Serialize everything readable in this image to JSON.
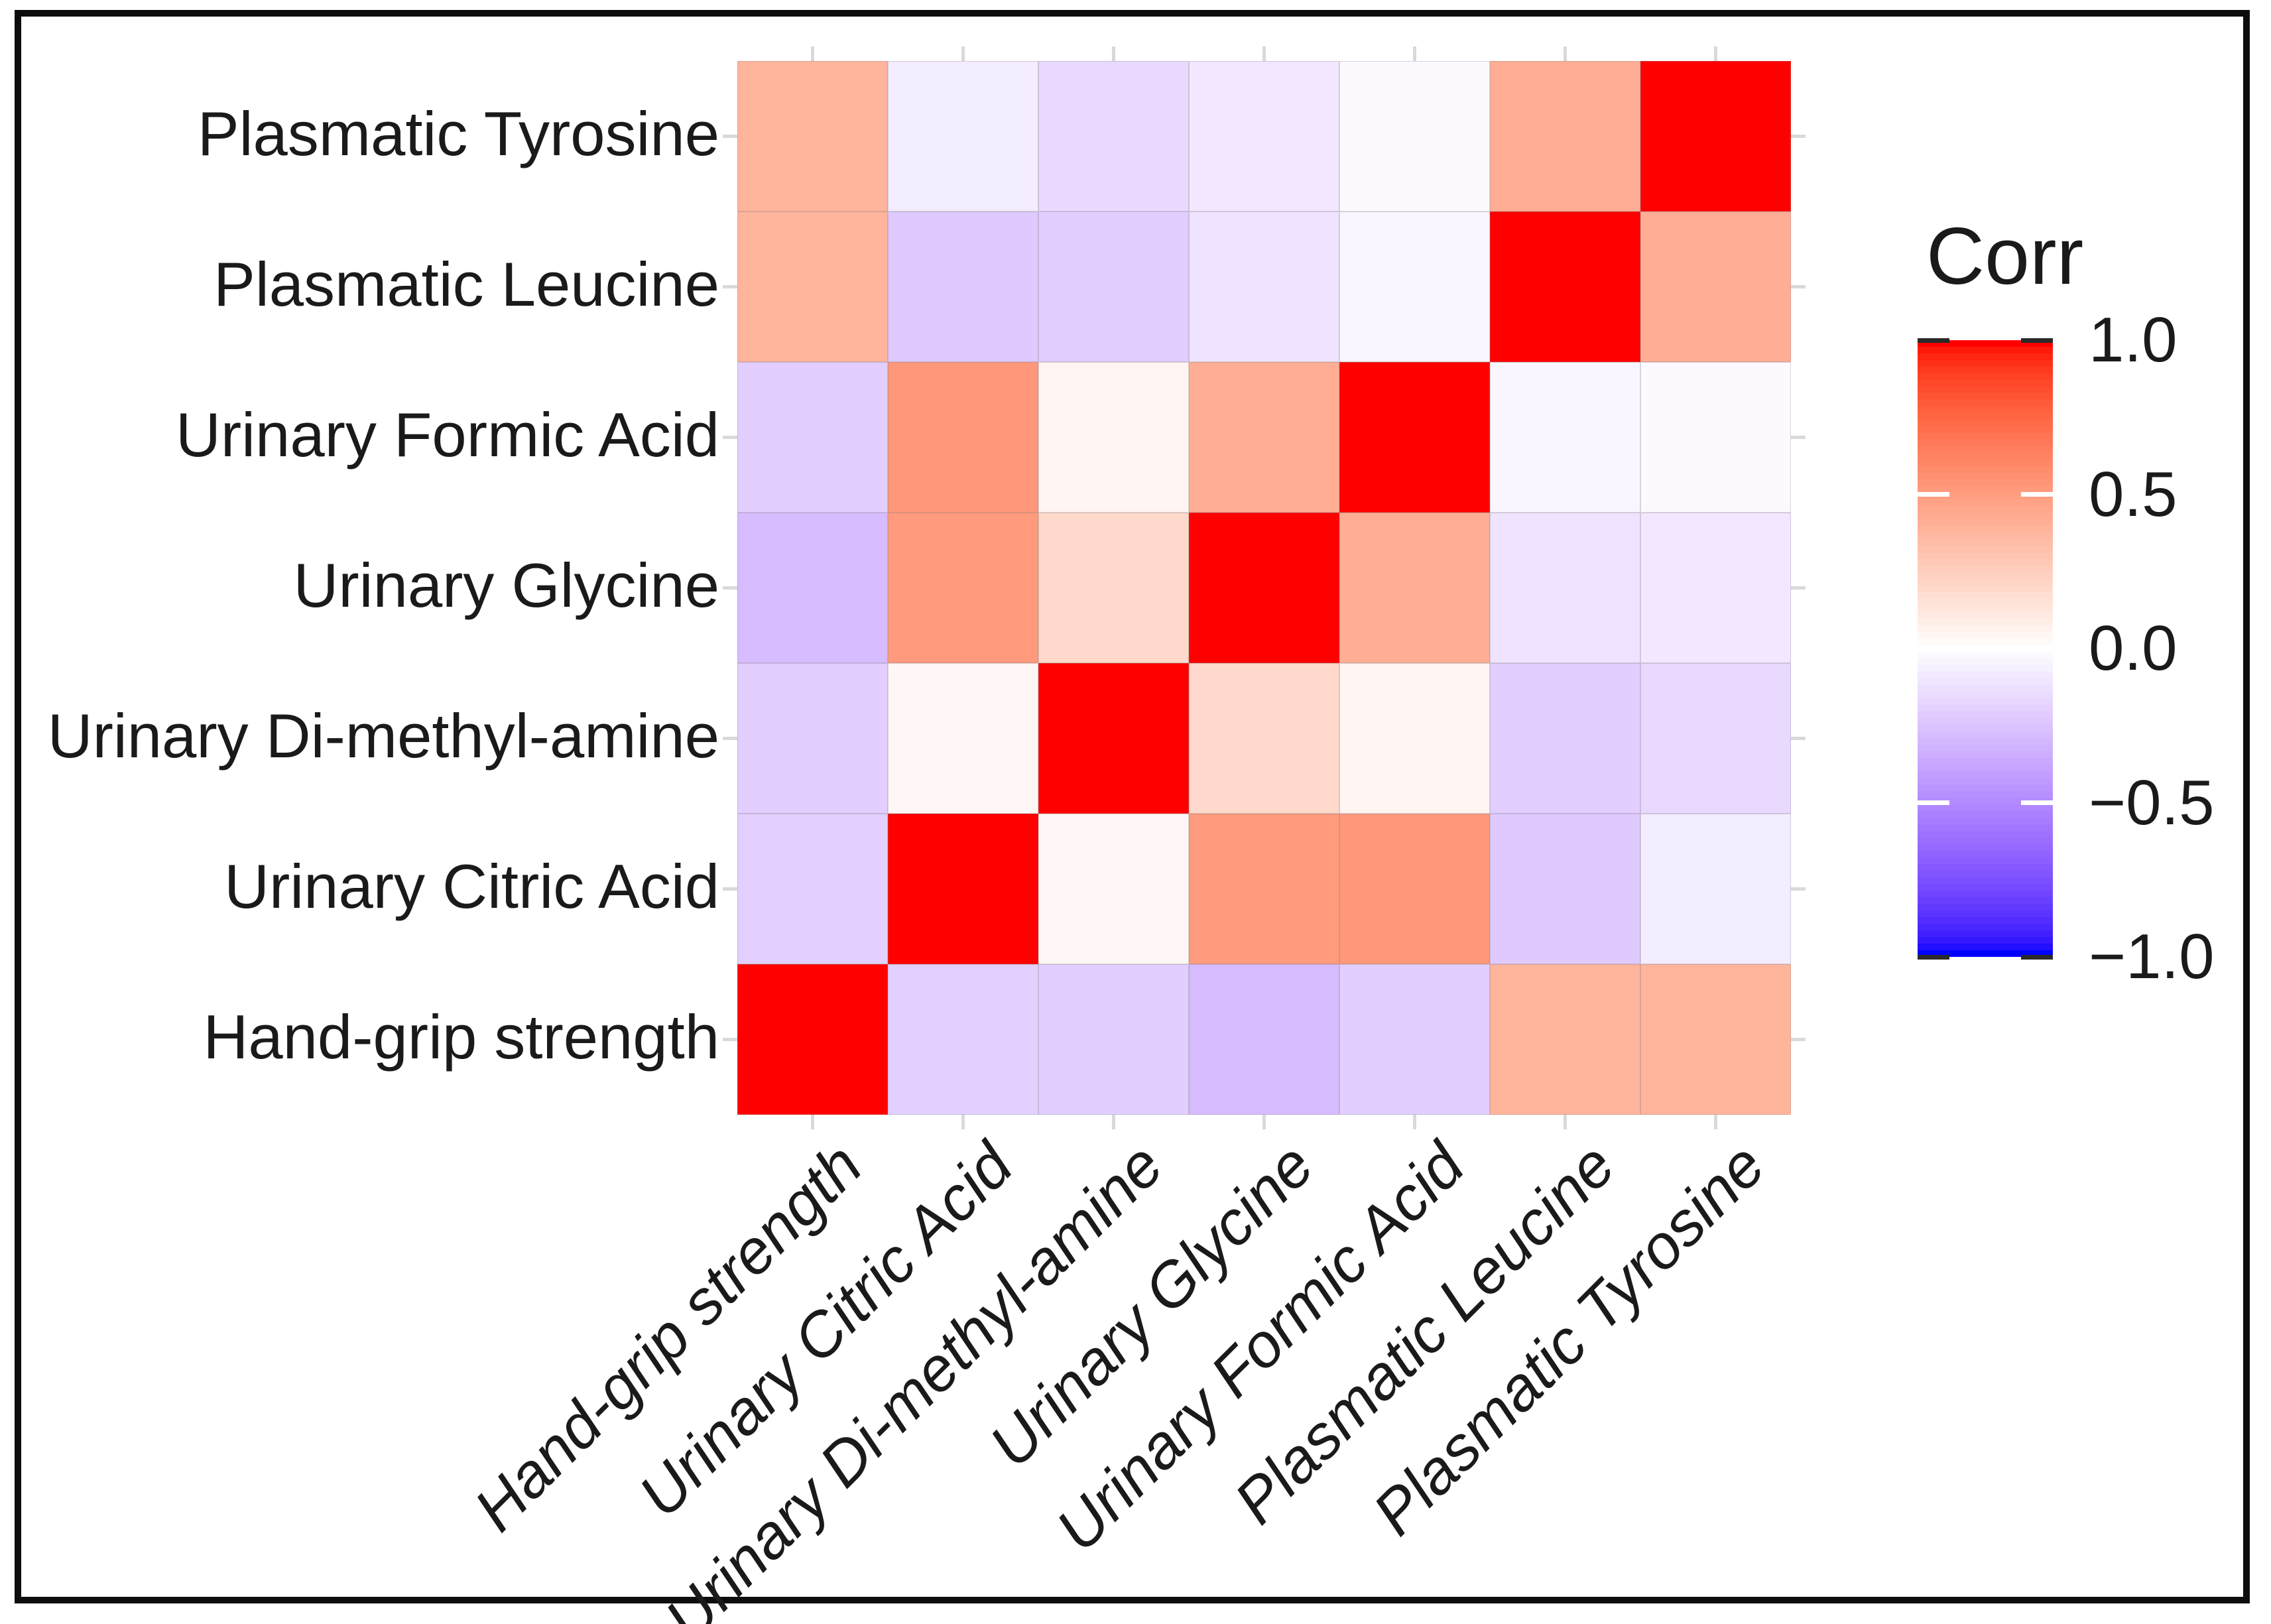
{
  "chart_data": {
    "type": "heatmap",
    "title": "",
    "legend_title": "Corr",
    "colorbar_ticks": [
      1.0,
      0.5,
      0.0,
      -0.5,
      -1.0
    ],
    "colorbar_tick_labels": [
      "1.0",
      "0.5",
      "0.0",
      "−0.5",
      "−1.0"
    ],
    "value_range": [
      -1,
      1
    ],
    "colormap": {
      "low": "#0000FF",
      "mid": "#FFFFFF",
      "high": "#FF0000",
      "interpolation": "lab"
    },
    "x_categories": [
      "Hand-grip strength",
      "Urinary Citric Acid",
      "Urinary Di-methyl-amine",
      "Urinary Glycine",
      "Urinary Formic Acid",
      "Plasmatic Leucine",
      "Plasmatic Tyrosine"
    ],
    "y_categories": [
      "Plasmatic Tyrosine",
      "Plasmatic Leucine",
      "Urinary Formic Acid",
      "Urinary Glycine",
      "Urinary Di-methyl-amine",
      "Urinary Citric Acid",
      "Hand-grip strength"
    ],
    "matrix": [
      [
        0.39,
        -0.08,
        -0.16,
        -0.1,
        -0.02,
        0.42,
        1.0
      ],
      [
        0.39,
        -0.23,
        -0.21,
        -0.12,
        -0.04,
        1.0,
        0.42
      ],
      [
        -0.21,
        0.53,
        0.05,
        0.42,
        1.0,
        -0.04,
        -0.02
      ],
      [
        -0.29,
        0.52,
        0.2,
        1.0,
        0.42,
        -0.12,
        -0.1
      ],
      [
        -0.21,
        0.04,
        1.0,
        0.2,
        0.05,
        -0.21,
        -0.16
      ],
      [
        -0.2,
        1.0,
        0.04,
        0.52,
        0.53,
        -0.23,
        -0.08
      ],
      [
        1.0,
        -0.2,
        -0.21,
        -0.29,
        -0.21,
        0.39,
        0.39
      ]
    ],
    "grid": true,
    "legend_position": "right"
  }
}
